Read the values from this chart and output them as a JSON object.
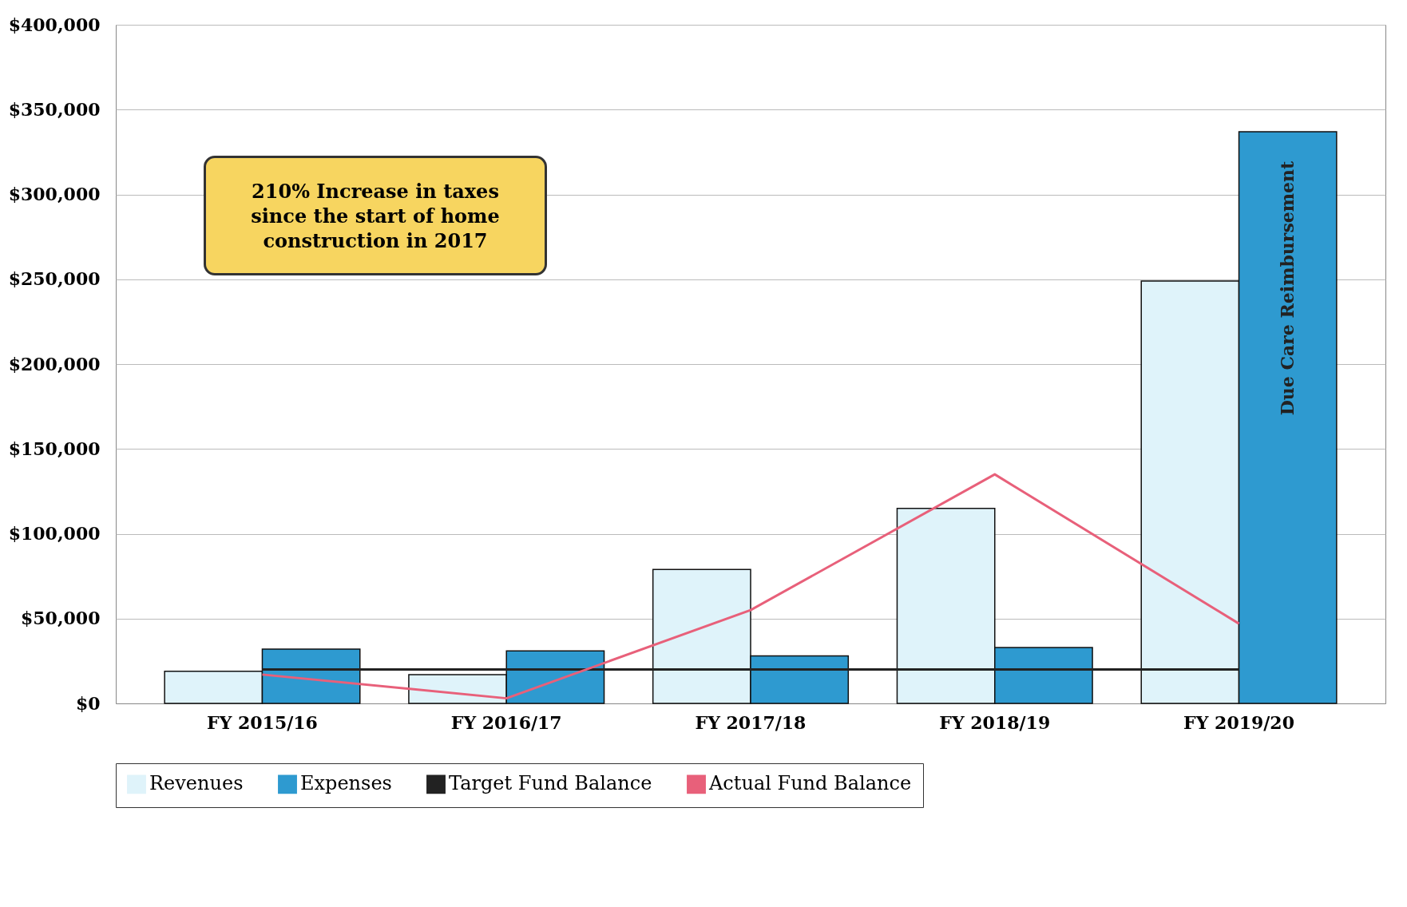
{
  "chart_data": {
    "type": "bar",
    "categories": [
      "FY 2015/16",
      "FY 2016/17",
      "FY 2017/18",
      "FY 2018/19",
      "FY 2019/20"
    ],
    "series": [
      {
        "name": "Revenues",
        "color": "#dff3fa",
        "values": [
          19000,
          17000,
          79000,
          115000,
          249000
        ]
      },
      {
        "name": "Expenses",
        "color": "#2e9ad0",
        "values": [
          32000,
          31000,
          28000,
          33000,
          337000
        ]
      },
      {
        "name": "Target Fund Balance",
        "type": "line",
        "color": "#222222",
        "values": [
          20000,
          20000,
          20000,
          20000,
          20000
        ]
      },
      {
        "name": "Actual Fund Balance",
        "type": "line",
        "color": "#e8607a",
        "values": [
          17000,
          3000,
          55000,
          135000,
          47000
        ]
      }
    ],
    "ylim": [
      0,
      400000
    ],
    "yticks": [
      {
        "value": 0,
        "label": "$0"
      },
      {
        "value": 50000,
        "label": "$50,000"
      },
      {
        "value": 100000,
        "label": "$100,000"
      },
      {
        "value": 150000,
        "label": "$150,000"
      },
      {
        "value": 200000,
        "label": "$200,000"
      },
      {
        "value": 250000,
        "label": "$250,000"
      },
      {
        "value": 300000,
        "label": "$300,000"
      },
      {
        "value": 350000,
        "label": "$350,000"
      },
      {
        "value": 400000,
        "label": "$400,000"
      }
    ],
    "grid": "y",
    "legend": "bottom",
    "annotations": [
      "210% Increase in taxes since the start of home construction in 2017",
      "Due Care Reimbursement"
    ]
  }
}
